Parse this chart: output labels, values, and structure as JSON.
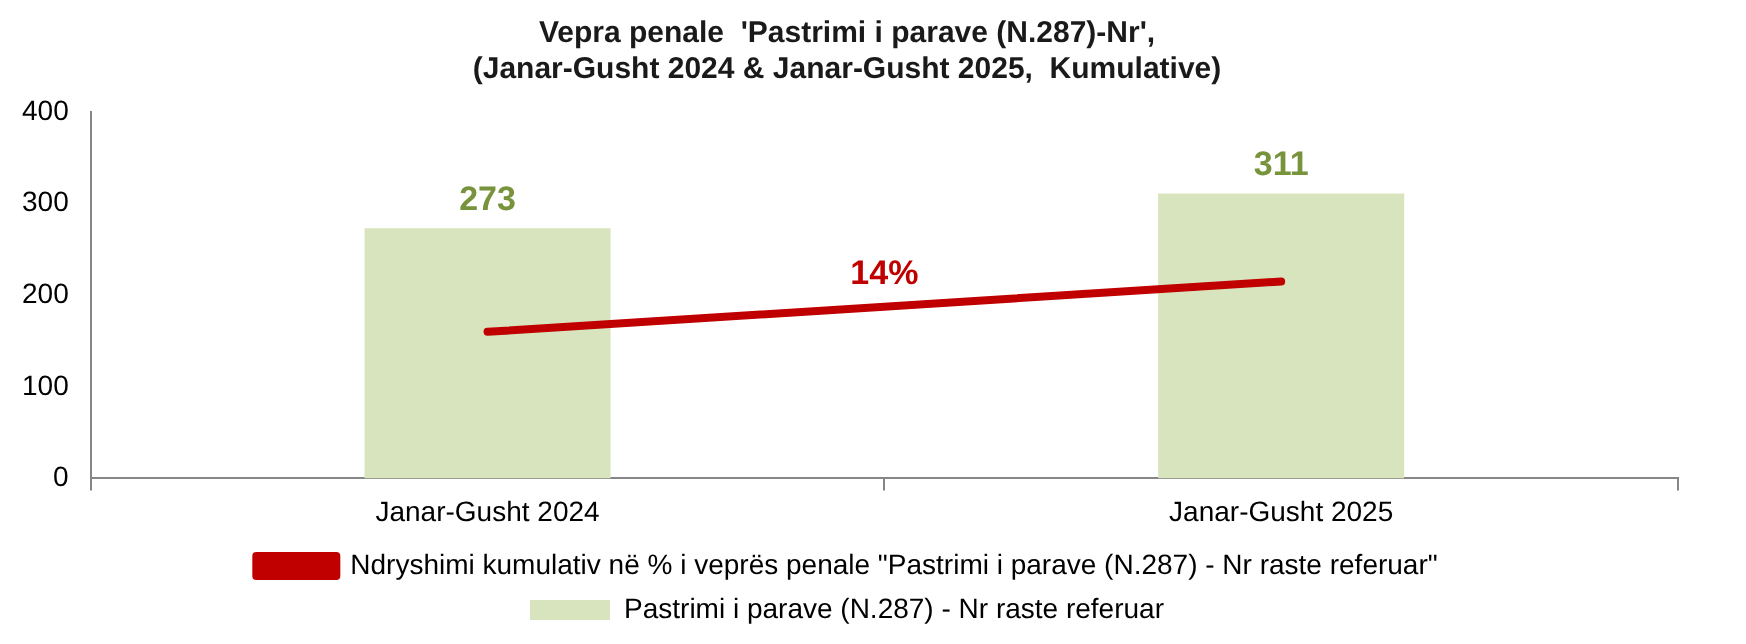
{
  "chart_data": {
    "type": "bar",
    "title": [
      "Vepra penale  'Pastrimi i parave (N.287)-Nr',",
      "(Janar-Gusht 2024 & Janar-Gusht 2025,  Kumulative)"
    ],
    "categories": [
      "Janar-Gusht 2024",
      "Janar-Gusht 2025"
    ],
    "series": [
      {
        "name": "Pastrimi i parave (N.287) - Nr raste referuar",
        "color": "#d7e4bd",
        "values": [
          273,
          311
        ],
        "value_labels": [
          "273",
          "311"
        ]
      },
      {
        "name": "Ndryshimi kumulativ në % i veprës penale \"Pastrimi i parave (N.287) - Nr raste referuar\"",
        "type": "line",
        "color": "#c00000",
        "values": [
          160,
          215
        ],
        "marker": "none"
      }
    ],
    "annotations": [
      "14%"
    ],
    "ylim": [
      0,
      400
    ],
    "yticks": [
      0,
      100,
      200,
      300,
      400
    ],
    "grid": false,
    "legend": "bottom"
  }
}
